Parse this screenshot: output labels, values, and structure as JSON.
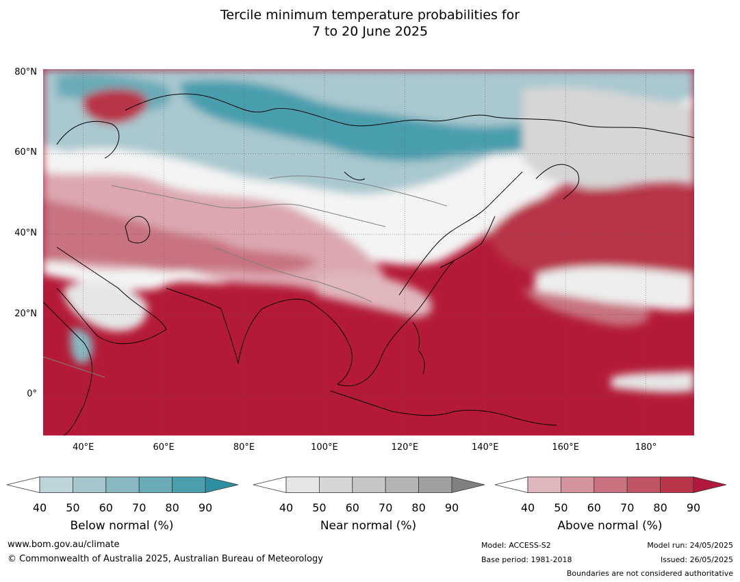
{
  "title": {
    "line1": "Tercile minimum temperature probabilities for",
    "line2": "7 to 20 June 2025"
  },
  "map": {
    "lat_labels": [
      "80°N",
      "60°N",
      "40°N",
      "20°N",
      "0°"
    ],
    "lat_values": [
      80,
      60,
      40,
      20,
      0
    ],
    "lon_labels": [
      "40°E",
      "60°E",
      "80°E",
      "100°E",
      "120°E",
      "140°E",
      "160°E",
      "180°"
    ],
    "lon_values": [
      40,
      60,
      80,
      100,
      120,
      140,
      160,
      180
    ],
    "lon_range": [
      30,
      192
    ],
    "lat_range": [
      -10,
      81
    ],
    "colors": {
      "above": "#b41a37",
      "below": "#3c98ab",
      "near": "#e4e4e4",
      "land_line": "#000000",
      "border_line": "#808080"
    }
  },
  "colorbars": [
    {
      "label": "Below normal (%)",
      "ticks": [
        "40",
        "50",
        "60",
        "70",
        "80",
        "90"
      ],
      "colors": [
        "#ffffff",
        "#bdd4da",
        "#a5c6cc",
        "#88b8c1",
        "#6aabb7",
        "#4a9eae",
        "#2f8fa2"
      ]
    },
    {
      "label": "Near normal (%)",
      "ticks": [
        "40",
        "50",
        "60",
        "70",
        "80",
        "90"
      ],
      "colors": [
        "#ffffff",
        "#e6e6e6",
        "#d6d6d6",
        "#c6c6c6",
        "#b4b4b4",
        "#a0a0a0",
        "#808080"
      ]
    },
    {
      "label": "Above normal (%)",
      "ticks": [
        "40",
        "50",
        "60",
        "70",
        "80",
        "90"
      ],
      "colors": [
        "#ffffff",
        "#e0b7bd",
        "#d4949d",
        "#c8737f",
        "#c05565",
        "#b83448",
        "#b3193a"
      ]
    }
  ],
  "footer": {
    "url": "www.bom.gov.au/climate",
    "copyright": "© Commonwealth of Australia 2025, Australian Bureau of Meteorology",
    "model": "Model: ACCESS-S2",
    "base_period": "Base period: 1981-2018",
    "model_run": "Model run: 24/05/2025",
    "issued": "Issued: 26/05/2025",
    "boundaries": "Boundaries are not considered authoritative"
  }
}
